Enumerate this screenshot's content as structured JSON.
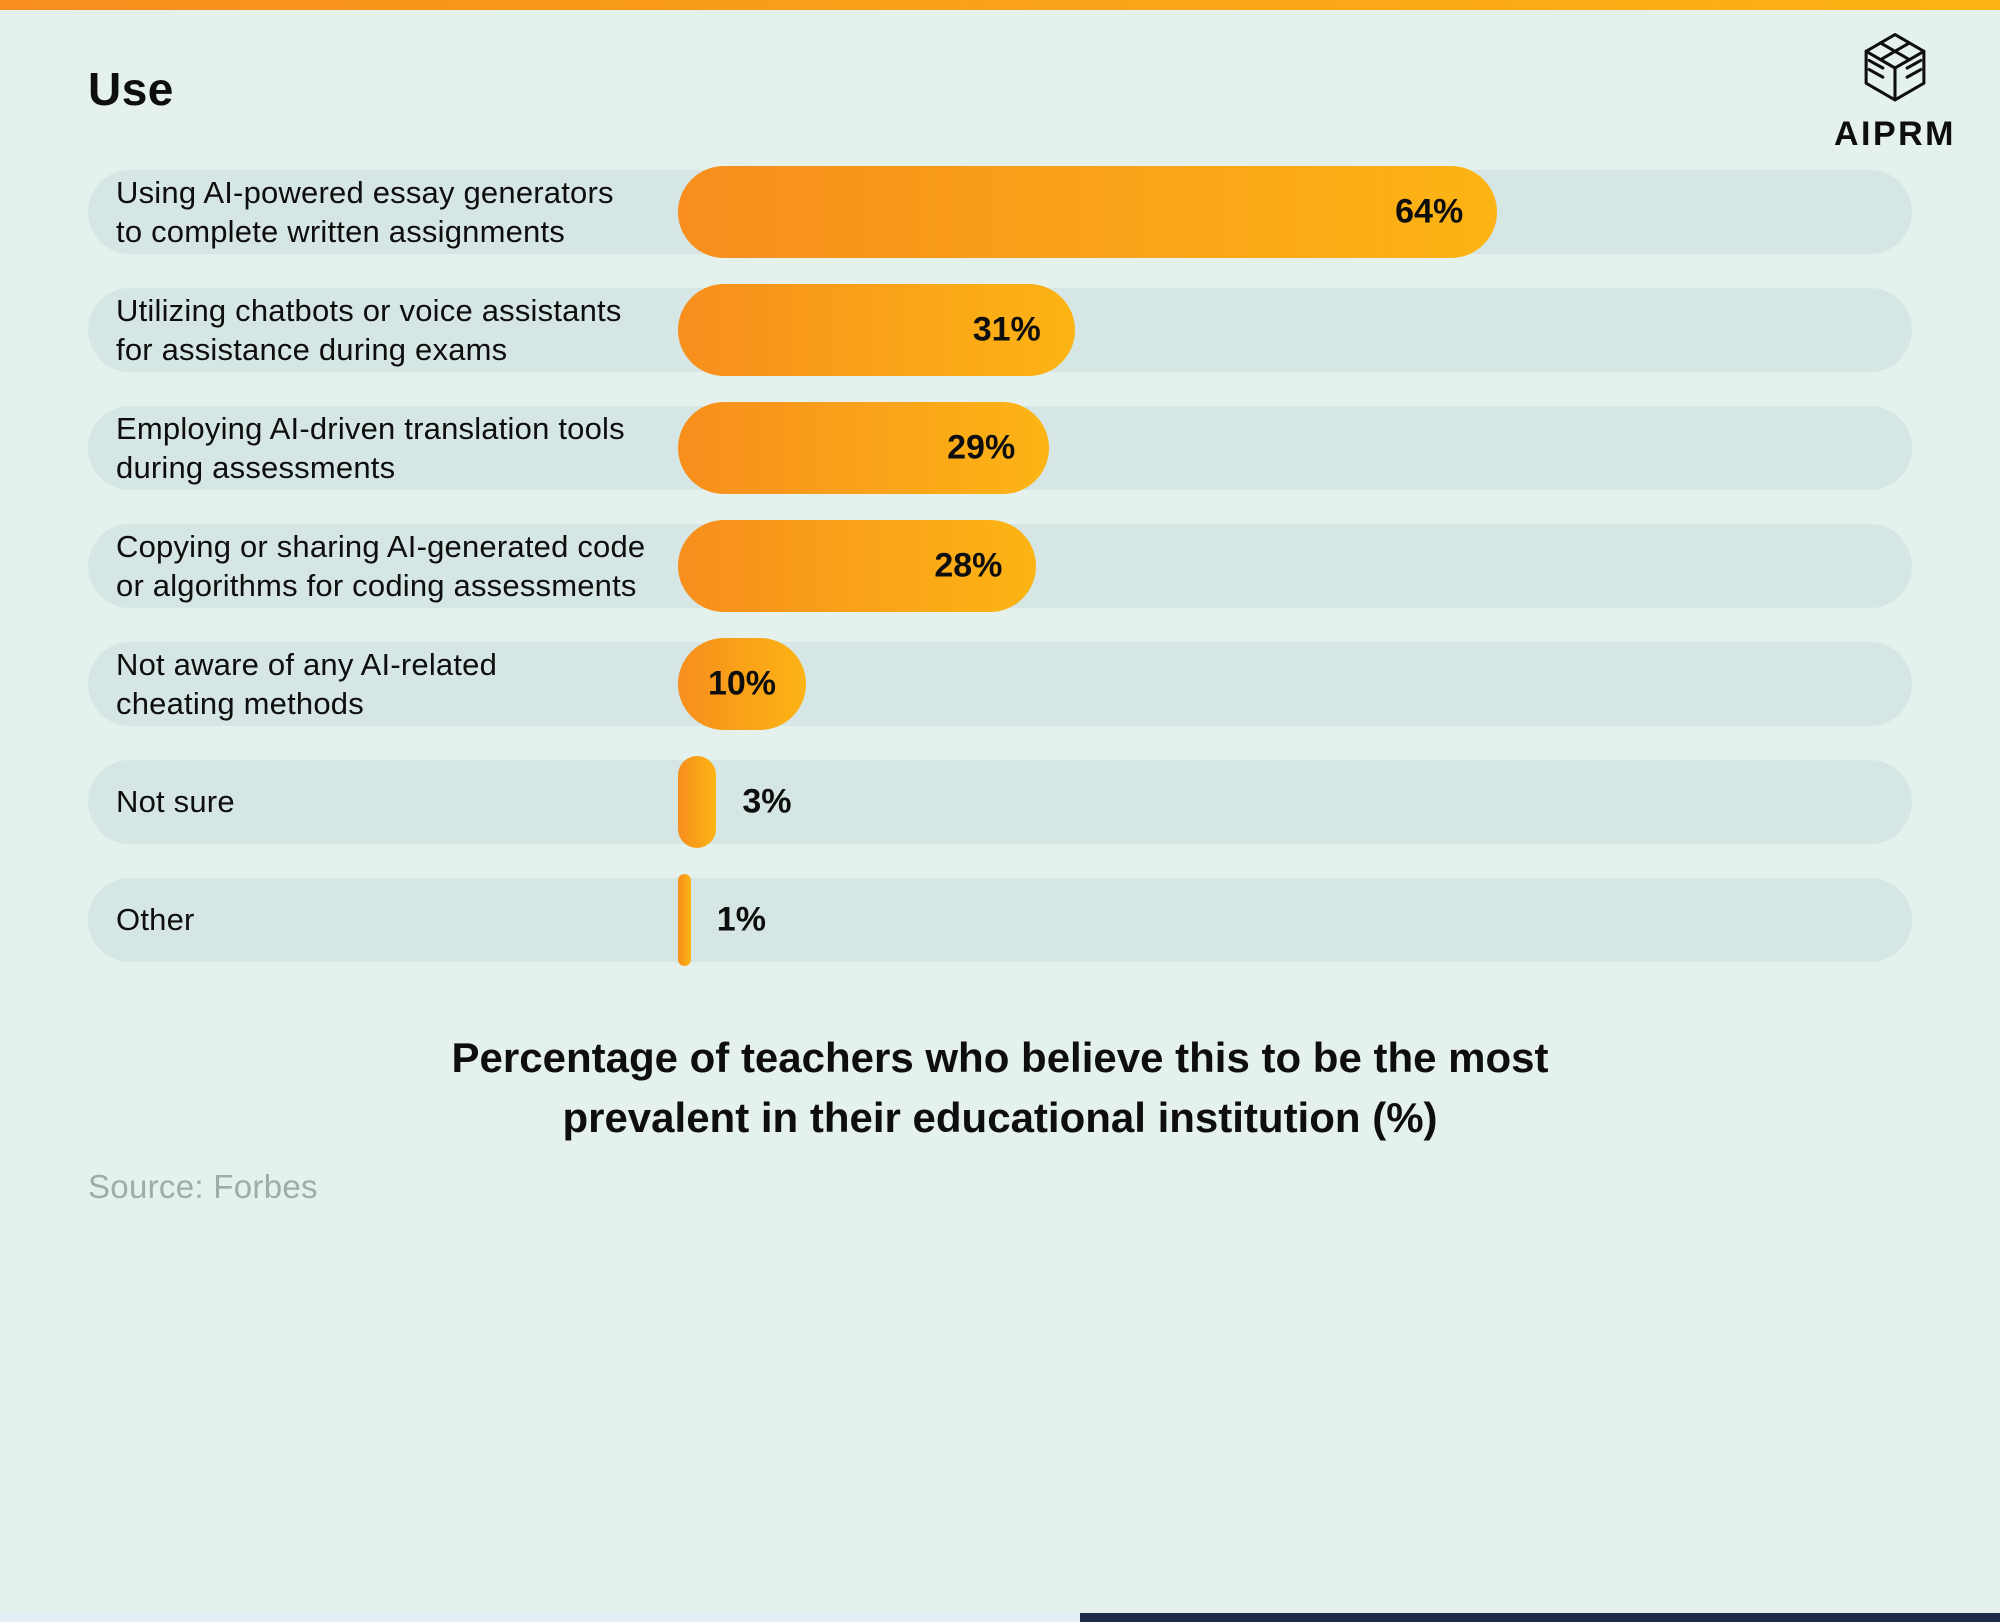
{
  "page": {
    "title": "Use",
    "logo_text": "AIPRM"
  },
  "caption": {
    "line1": "Percentage of teachers who believe this to be the most",
    "line2": "prevalent in their educational institution (%)"
  },
  "source_label": "Source: Forbes",
  "colors": {
    "background": "#E4F1ED",
    "row_pill": "#D5E6E4",
    "bar_start": "#F78E1D",
    "bar_end": "#FCB414",
    "text": "#0E0E0E",
    "source_text": "#9DAEA9",
    "bottom_left": "#E6EFF6",
    "bottom_right": "#1C2B4A"
  },
  "chart_data": {
    "type": "bar",
    "orientation": "horizontal",
    "title": "Use",
    "unit": "%",
    "xlim": [
      0,
      100
    ],
    "grid": false,
    "legend": false,
    "caption": "Percentage of teachers who believe this to be the most prevalent in their educational institution (%)",
    "source": "Forbes",
    "categories": [
      "Using AI-powered essay generators to complete written assignments",
      "Utilizing chatbots or voice assistants for assistance during exams",
      "Employing AI-driven translation tools during assessments",
      "Copying or sharing AI-generated code or algorithms for coding assessments",
      "Not aware of any AI-related cheating methods",
      "Not sure",
      "Other"
    ],
    "values": [
      64,
      31,
      29,
      28,
      10,
      3,
      1
    ],
    "rows": [
      {
        "label": "Using AI-powered essay generators\nto complete written assignments",
        "value": 64,
        "pct_label": "64%"
      },
      {
        "label": "Utilizing chatbots or voice assistants\nfor assistance during exams",
        "value": 31,
        "pct_label": "31%"
      },
      {
        "label": "Employing AI-driven translation tools\nduring assessments",
        "value": 29,
        "pct_label": "29%"
      },
      {
        "label": "Copying or sharing AI-generated code\nor algorithms for coding assessments",
        "value": 28,
        "pct_label": "28%"
      },
      {
        "label": "Not aware of any AI-related\ncheating methods",
        "value": 10,
        "pct_label": "10%"
      },
      {
        "label": "Not sure",
        "value": 3,
        "pct_label": "3%"
      },
      {
        "label": "Other",
        "value": 1,
        "pct_label": "1%"
      }
    ]
  }
}
